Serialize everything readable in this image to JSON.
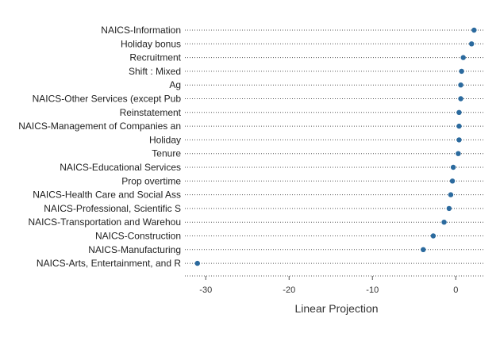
{
  "chart_data": {
    "type": "scatter",
    "orientation": "horizontal-dot-plot",
    "title": "",
    "xlabel": "Linear Projection",
    "ylabel": "",
    "xlim": [
      -32.5,
      3.5
    ],
    "xticks": [
      -30,
      -20,
      -10,
      0
    ],
    "grid": false,
    "guide_lines": "dotted",
    "point_color": "#2b6a9e",
    "categories": [
      "NAICS-Information",
      "Holiday bonus",
      "Recruitment",
      "Shift : Mixed",
      "Ag",
      "NAICS-Other Services (except Pub",
      "Reinstatement",
      "NAICS-Management of Companies an",
      "Holiday",
      "Tenure",
      "NAICS-Educational Services",
      "Prop overtime",
      "NAICS-Health Care and Social Ass",
      "NAICS-Professional, Scientific S",
      "NAICS-Transportation and Warehou",
      "NAICS-Construction",
      "NAICS-Manufacturing",
      "NAICS-Arts, Entertainment, and R"
    ],
    "values": [
      2.2,
      1.9,
      0.9,
      0.7,
      0.6,
      0.6,
      0.4,
      0.4,
      0.4,
      0.3,
      -0.3,
      -0.4,
      -0.6,
      -0.8,
      -1.4,
      -2.7,
      -3.9,
      -31.0
    ]
  }
}
